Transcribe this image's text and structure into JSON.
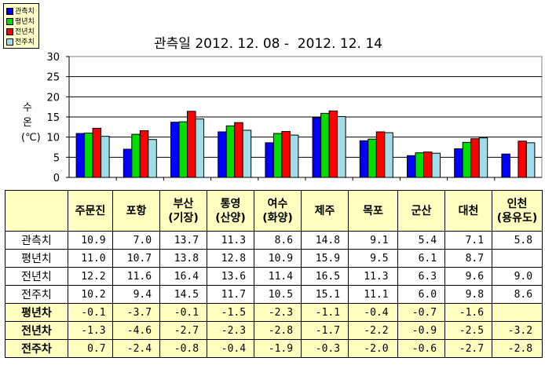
{
  "chart_data": {
    "type": "bar",
    "title": "관측일 2012. 12. 08 -  2012. 12. 14",
    "ylabel": [
      "수",
      "온",
      "(℃)"
    ],
    "ylim": [
      0,
      30
    ],
    "yticks": [
      "0",
      "5",
      "10",
      "15",
      "20",
      "25",
      "30"
    ],
    "grid": true,
    "legend_position": "top-left",
    "categories": [
      "주문진",
      "포항",
      "부산\n(기장)",
      "통영\n(산양)",
      "여수\n(화양)",
      "제주",
      "목포",
      "군산",
      "대천",
      "인천\n(용유도)"
    ],
    "series": [
      {
        "name": "관측치",
        "color": "#0000ff",
        "values": [
          10.9,
          7.0,
          13.7,
          11.3,
          8.6,
          14.8,
          9.1,
          5.4,
          7.1,
          5.8
        ]
      },
      {
        "name": "평년치",
        "color": "#00dd00",
        "values": [
          11.0,
          10.7,
          13.8,
          12.8,
          10.9,
          15.9,
          9.5,
          6.1,
          8.7,
          null
        ]
      },
      {
        "name": "전년치",
        "color": "#ff0000",
        "values": [
          12.2,
          11.6,
          16.4,
          13.6,
          11.4,
          16.5,
          11.3,
          6.3,
          9.6,
          9.0
        ]
      },
      {
        "name": "전주치",
        "color": "#a0dde8",
        "values": [
          10.2,
          9.4,
          14.5,
          11.7,
          10.5,
          15.1,
          11.1,
          6.0,
          9.8,
          8.6
        ]
      }
    ]
  },
  "table": {
    "header": [
      "",
      "주문진",
      "포항",
      "부산\n(기장)",
      "통영\n(산양)",
      "여수\n(화양)",
      "제주",
      "목포",
      "군산",
      "대천",
      "인천\n(용유도)"
    ],
    "rows": [
      {
        "label": "관측치",
        "highlight": false,
        "values": [
          " 10.9",
          "  7.0",
          " 13.7",
          " 11.3",
          "  8.6",
          " 14.8",
          "  9.1",
          "  5.4",
          "  7.1",
          "  5.8"
        ]
      },
      {
        "label": "평년치",
        "highlight": false,
        "values": [
          " 11.0",
          " 10.7",
          " 13.8",
          " 12.8",
          " 10.9",
          " 15.9",
          "  9.5",
          "  6.1",
          "  8.7",
          ""
        ]
      },
      {
        "label": "전년치",
        "highlight": false,
        "values": [
          " 12.2",
          " 11.6",
          " 16.4",
          " 13.6",
          " 11.4",
          " 16.5",
          " 11.3",
          "  6.3",
          "  9.6",
          "  9.0"
        ]
      },
      {
        "label": "전주치",
        "highlight": false,
        "values": [
          " 10.2",
          "  9.4",
          " 14.5",
          " 11.7",
          " 10.5",
          " 15.1",
          " 11.1",
          "  6.0",
          "  9.8",
          "  8.6"
        ]
      },
      {
        "label": "평년차",
        "highlight": true,
        "values": [
          " -0.1",
          " -3.7",
          " -0.1",
          " -1.5",
          " -2.3",
          " -1.1",
          " -0.4",
          " -0.7",
          " -1.6",
          ""
        ]
      },
      {
        "label": "전년차",
        "highlight": true,
        "values": [
          " -1.3",
          " -4.6",
          " -2.7",
          " -2.3",
          " -2.8",
          " -1.7",
          " -2.2",
          " -0.9",
          " -2.5",
          " -3.2"
        ]
      },
      {
        "label": "전주차",
        "highlight": true,
        "values": [
          "  0.7",
          " -2.4",
          " -0.8",
          " -0.4",
          " -1.9",
          " -0.3",
          " -2.0",
          " -0.6",
          " -2.7",
          " -2.8"
        ]
      }
    ]
  }
}
